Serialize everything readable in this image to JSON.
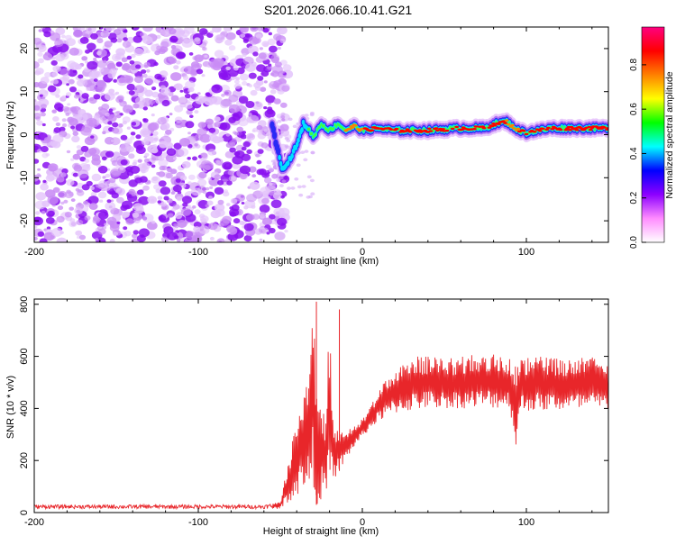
{
  "title": "S201.2026.066.10.41.G21",
  "chart_data": [
    {
      "type": "heatmap",
      "xlabel": "Height of straight line (km)",
      "ylabel": "Frequency (Hz)",
      "xlim": [
        -200,
        150
      ],
      "ylim": [
        -25,
        25
      ],
      "xticks": [
        -200,
        -100,
        0,
        100
      ],
      "yticks": [
        -20,
        -10,
        0,
        10,
        20
      ],
      "colorbar": {
        "label": "Normalized spectral amplitude",
        "range": [
          0,
          0.97
        ],
        "ticks": [
          "0.0",
          "0.2",
          "0.4",
          "0.6",
          "0.8"
        ],
        "tick_values": [
          0.0,
          0.2,
          0.4,
          0.6,
          0.8
        ],
        "colors": [
          "#ffffff",
          "#ff8cff",
          "#8c00ff",
          "#0000ff",
          "#00ffff",
          "#00ff00",
          "#ffff00",
          "#ff8000",
          "#ff0000",
          "#ff0080"
        ]
      },
      "noise_region_x": [
        -200,
        -55
      ],
      "ridge": [
        {
          "x": -55,
          "y": 2.5,
          "a": 0.3
        },
        {
          "x": -52,
          "y": -3,
          "a": 0.4
        },
        {
          "x": -49,
          "y": -7.5,
          "a": 0.5
        },
        {
          "x": -46,
          "y": -7,
          "a": 0.5
        },
        {
          "x": -42,
          "y": -4,
          "a": 0.5
        },
        {
          "x": -39,
          "y": -1.5,
          "a": 0.55
        },
        {
          "x": -36,
          "y": 2.5,
          "a": 0.55
        },
        {
          "x": -33,
          "y": 1.5,
          "a": 0.6
        },
        {
          "x": -30,
          "y": -0.5,
          "a": 0.6
        },
        {
          "x": -25,
          "y": 2.5,
          "a": 0.65
        },
        {
          "x": -20,
          "y": 1,
          "a": 0.7
        },
        {
          "x": -15,
          "y": 2.5,
          "a": 0.7
        },
        {
          "x": -10,
          "y": 1,
          "a": 0.75
        },
        {
          "x": -5,
          "y": 2,
          "a": 0.75
        },
        {
          "x": 0,
          "y": 1,
          "a": 0.8
        },
        {
          "x": 10,
          "y": 1.5,
          "a": 0.85
        },
        {
          "x": 20,
          "y": 1,
          "a": 0.85
        },
        {
          "x": 40,
          "y": 1,
          "a": 0.85
        },
        {
          "x": 60,
          "y": 1.5,
          "a": 0.9
        },
        {
          "x": 75,
          "y": 1.5,
          "a": 0.9
        },
        {
          "x": 80,
          "y": 2.5,
          "a": 0.9
        },
        {
          "x": 88,
          "y": 3,
          "a": 0.8
        },
        {
          "x": 95,
          "y": 1,
          "a": 0.8
        },
        {
          "x": 100,
          "y": 0.5,
          "a": 0.85
        },
        {
          "x": 115,
          "y": 1.5,
          "a": 0.9
        },
        {
          "x": 130,
          "y": 1.5,
          "a": 0.9
        },
        {
          "x": 150,
          "y": 1.5,
          "a": 0.9
        }
      ]
    },
    {
      "type": "line",
      "xlabel": "Height of straight line (km)",
      "ylabel": "SNR (10 * v/v)",
      "xlim": [
        -200,
        150
      ],
      "ylim": [
        0,
        820
      ],
      "xticks": [
        -200,
        -100,
        0,
        100
      ],
      "yticks": [
        0,
        200,
        400,
        600,
        800
      ],
      "line_color": "#e8262a",
      "series": [
        {
          "name": "SNR",
          "x": [
            -200,
            -150,
            -100,
            -60,
            -50,
            -45,
            -40,
            -38,
            -35,
            -33,
            -30,
            -28,
            -25,
            -22,
            -20,
            -18,
            -15,
            -10,
            -5,
            0,
            10,
            20,
            30,
            40,
            50,
            60,
            70,
            80,
            90,
            94,
            96,
            100,
            110,
            120,
            130,
            140,
            150
          ],
          "upper": [
            30,
            30,
            30,
            30,
            40,
            200,
            350,
            400,
            460,
            550,
            810,
            500,
            420,
            380,
            780,
            360,
            320,
            320,
            340,
            360,
            470,
            560,
            600,
            600,
            590,
            600,
            610,
            620,
            600,
            560,
            590,
            600,
            600,
            590,
            590,
            600,
            590
          ],
          "lower": [
            15,
            15,
            15,
            15,
            15,
            40,
            60,
            80,
            100,
            60,
            90,
            30,
            50,
            60,
            40,
            120,
            150,
            200,
            250,
            290,
            350,
            380,
            390,
            400,
            400,
            400,
            400,
            400,
            400,
            230,
            380,
            390,
            390,
            390,
            390,
            390,
            390
          ]
        }
      ]
    }
  ]
}
